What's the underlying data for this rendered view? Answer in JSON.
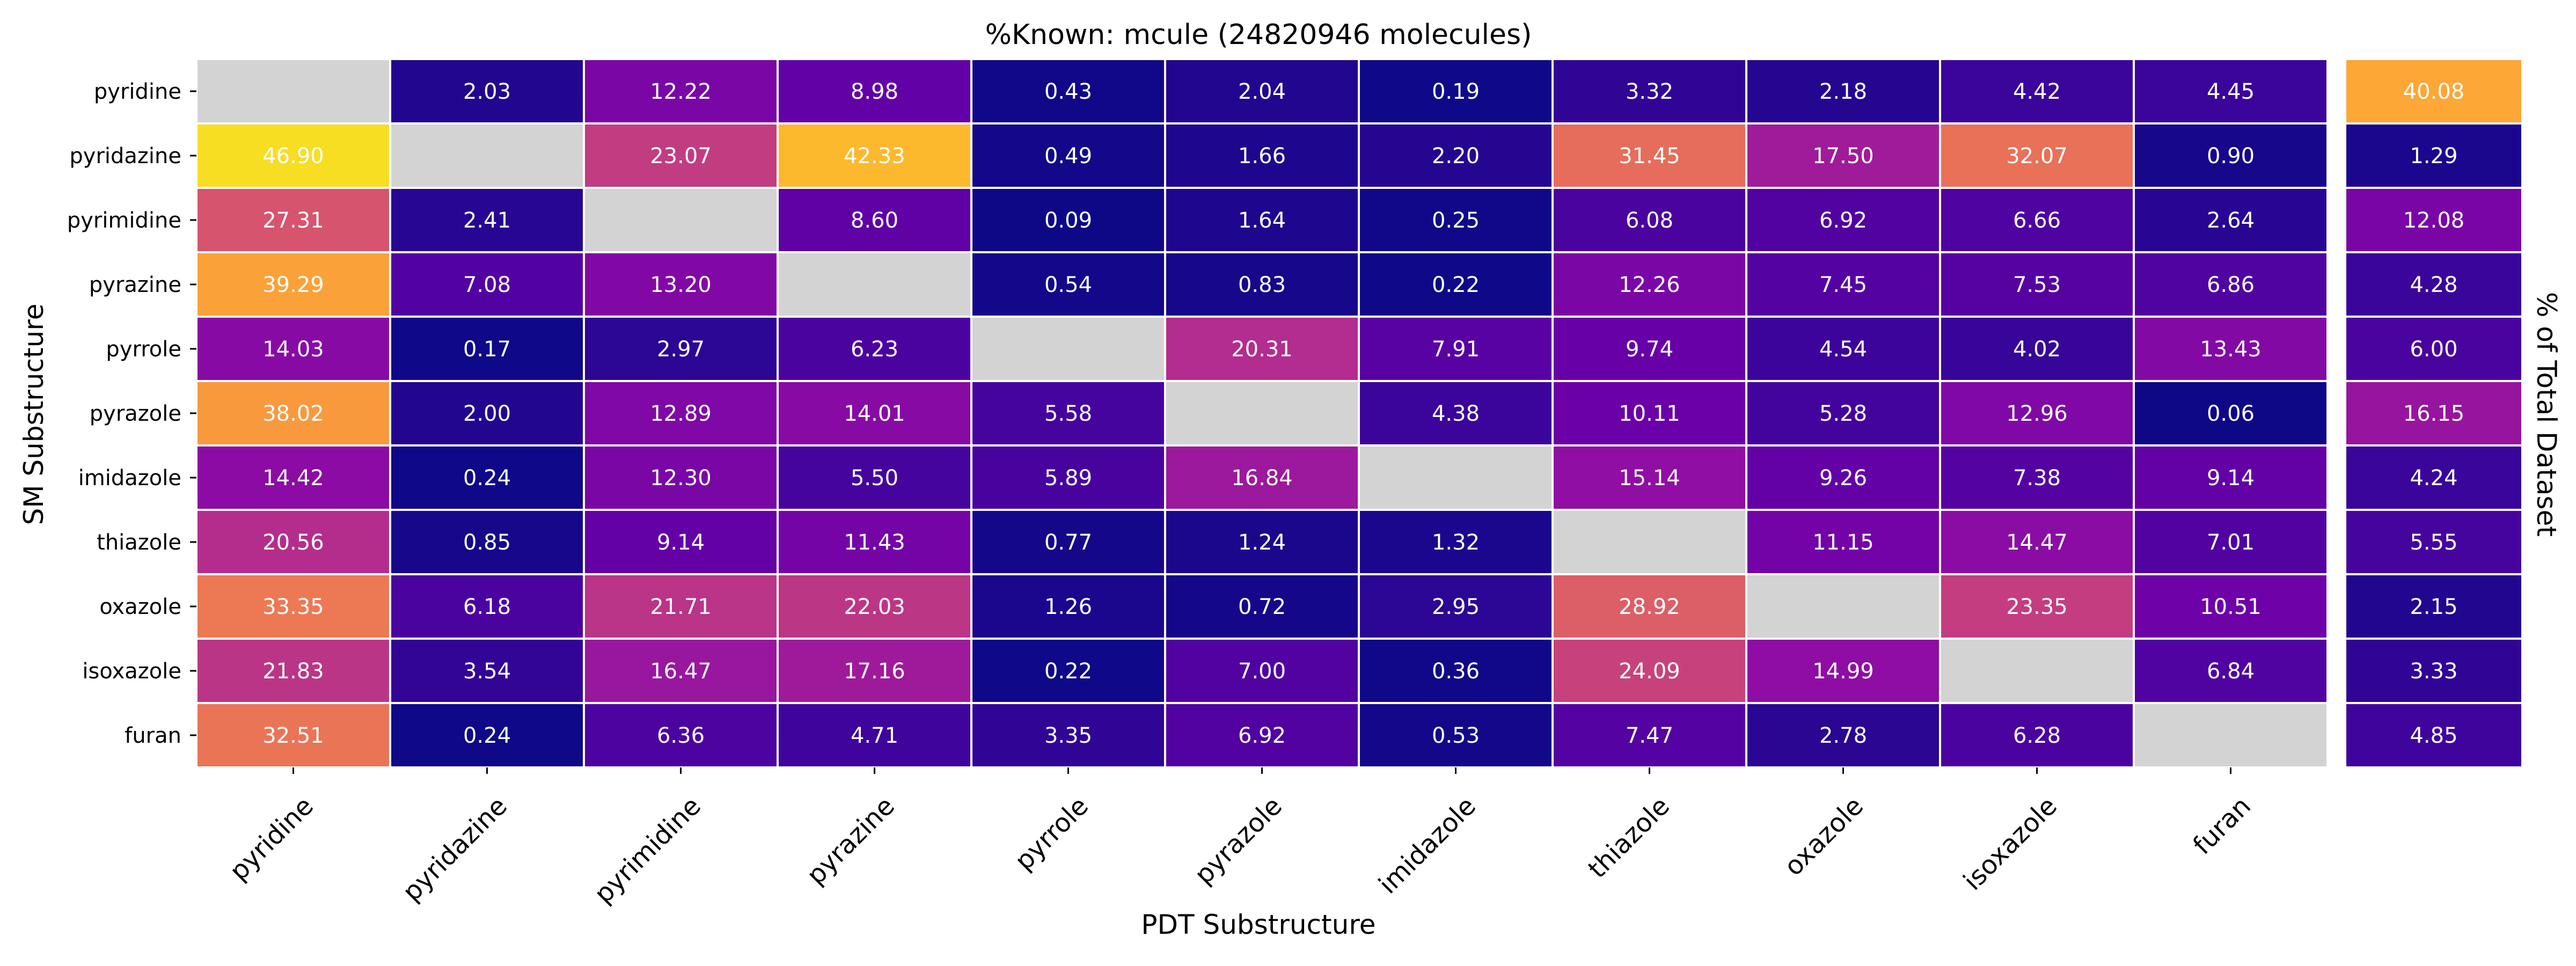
{
  "chart_data": {
    "type": "heatmap",
    "title": "%Known: mcule (24820946 molecules)",
    "xlabel": "PDT Substructure",
    "ylabel": "SM Substructure",
    "side_label": "% of Total Dataset",
    "x_categories": [
      "pyridine",
      "pyridazine",
      "pyrimidine",
      "pyrazine",
      "pyrrole",
      "pyrazole",
      "imidazole",
      "thiazole",
      "oxazole",
      "isoxazole",
      "furan"
    ],
    "y_categories": [
      "pyridine",
      "pyridazine",
      "pyrimidine",
      "pyrazine",
      "pyrrole",
      "pyrazole",
      "imidazole",
      "thiazole",
      "oxazole",
      "isoxazole",
      "furan"
    ],
    "values": [
      [
        null,
        2.03,
        12.22,
        8.98,
        0.43,
        2.04,
        0.19,
        3.32,
        2.18,
        4.42,
        4.45
      ],
      [
        46.9,
        null,
        23.07,
        42.33,
        0.49,
        1.66,
        2.2,
        31.45,
        17.5,
        32.07,
        0.9
      ],
      [
        27.31,
        2.41,
        null,
        8.6,
        0.09,
        1.64,
        0.25,
        6.08,
        6.92,
        6.66,
        2.64
      ],
      [
        39.29,
        7.08,
        13.2,
        null,
        0.54,
        0.83,
        0.22,
        12.26,
        7.45,
        7.53,
        6.86
      ],
      [
        14.03,
        0.17,
        2.97,
        6.23,
        null,
        20.31,
        7.91,
        9.74,
        4.54,
        4.02,
        13.43
      ],
      [
        38.02,
        2.0,
        12.89,
        14.01,
        5.58,
        null,
        4.38,
        10.11,
        5.28,
        12.96,
        0.06
      ],
      [
        14.42,
        0.24,
        12.3,
        5.5,
        5.89,
        16.84,
        null,
        15.14,
        9.26,
        7.38,
        9.14
      ],
      [
        20.56,
        0.85,
        9.14,
        11.43,
        0.77,
        1.24,
        1.32,
        null,
        11.15,
        14.47,
        7.01
      ],
      [
        33.35,
        6.18,
        21.71,
        22.03,
        1.26,
        0.72,
        2.95,
        28.92,
        null,
        23.35,
        10.51
      ],
      [
        21.83,
        3.54,
        16.47,
        17.16,
        0.22,
        7.0,
        0.36,
        24.09,
        14.99,
        null,
        6.84
      ],
      [
        32.51,
        0.24,
        6.36,
        4.71,
        3.35,
        6.92,
        0.53,
        7.47,
        2.78,
        6.28,
        null
      ]
    ],
    "total_percent": [
      40.08,
      1.29,
      12.08,
      4.28,
      6.0,
      16.15,
      4.24,
      5.55,
      2.15,
      3.33,
      4.85
    ],
    "value_format_decimals": 2,
    "color_scale": "plasma",
    "color_range": [
      0,
      50
    ],
    "missing_color": "#d3d3d3",
    "cell_border_color": "#ffffff",
    "label_color": "#ffffff"
  }
}
